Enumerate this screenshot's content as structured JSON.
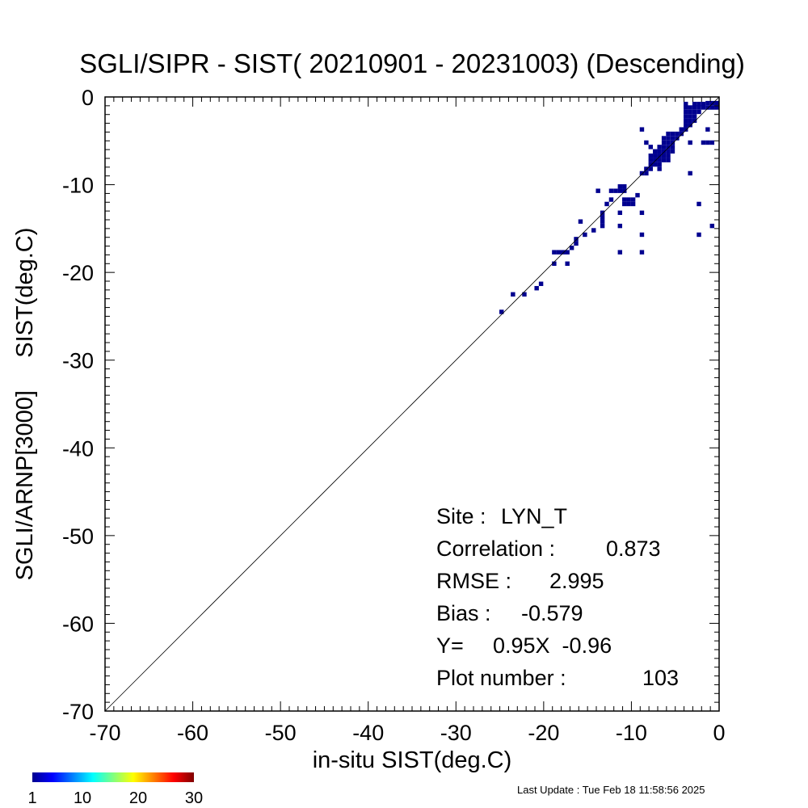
{
  "chart_data": {
    "type": "heatmap",
    "title": "SGLI/SIPR - SIST( 20210901 - 20231003) (Descending)",
    "xlabel": "in-situ SIST(deg.C)",
    "ylabel": "SGLI/ARNP[3000]     SIST(deg.C)",
    "xlim": [
      -70,
      0
    ],
    "ylim": [
      -70,
      0
    ],
    "x_ticks": [
      "-70",
      "-60",
      "-50",
      "-40",
      "-30",
      "-20",
      "-10",
      "0"
    ],
    "y_ticks": [
      "-70",
      "-60",
      "-50",
      "-40",
      "-30",
      "-20",
      "-10",
      "0"
    ],
    "grid": false,
    "one_to_one_line": true,
    "cell_size": 0.5,
    "cell_color": "#00008f",
    "points": [
      [
        -24.8,
        -24.5
      ],
      [
        -23.5,
        -22.5
      ],
      [
        -22.2,
        -22.5
      ],
      [
        -20.8,
        -21.8
      ],
      [
        -20.3,
        -21.3
      ],
      [
        -18.8,
        -19.0
      ],
      [
        -17.3,
        -19.0
      ],
      [
        -18.8,
        -17.7
      ],
      [
        -18.3,
        -17.7
      ],
      [
        -17.8,
        -17.7
      ],
      [
        -17.3,
        -17.7
      ],
      [
        -16.8,
        -17.2
      ],
      [
        -16.3,
        -16.7
      ],
      [
        -16.3,
        -16.2
      ],
      [
        -15.8,
        -14.2
      ],
      [
        -15.3,
        -15.7
      ],
      [
        -14.3,
        -15.2
      ],
      [
        -13.3,
        -14.7
      ],
      [
        -13.3,
        -14.2
      ],
      [
        -13.3,
        -13.7
      ],
      [
        -13.3,
        -13.2
      ],
      [
        -12.8,
        -12.2
      ],
      [
        -13.8,
        -10.7
      ],
      [
        -12.3,
        -11.7
      ],
      [
        -12.3,
        -10.7
      ],
      [
        -11.8,
        -10.7
      ],
      [
        -11.3,
        -10.7
      ],
      [
        -11.3,
        -10.2
      ],
      [
        -10.8,
        -10.2
      ],
      [
        -10.8,
        -10.7
      ],
      [
        -10.8,
        -11.7
      ],
      [
        -10.8,
        -12.2
      ],
      [
        -10.3,
        -12.2
      ],
      [
        -10.3,
        -11.7
      ],
      [
        -9.8,
        -12.2
      ],
      [
        -9.8,
        -11.7
      ],
      [
        -9.3,
        -11.2
      ],
      [
        -11.3,
        -13.2
      ],
      [
        -11.3,
        -14.7
      ],
      [
        -11.3,
        -17.7
      ],
      [
        -8.8,
        -13.2
      ],
      [
        -8.8,
        -15.7
      ],
      [
        -8.8,
        -17.7
      ],
      [
        -8.8,
        -8.7
      ],
      [
        -8.3,
        -8.7
      ],
      [
        -8.3,
        -8.2
      ],
      [
        -7.8,
        -7.7
      ],
      [
        -7.8,
        -7.2
      ],
      [
        -7.3,
        -7.2
      ],
      [
        -7.3,
        -6.7
      ],
      [
        -7.3,
        -6.2
      ],
      [
        -6.8,
        -7.7
      ],
      [
        -6.8,
        -7.2
      ],
      [
        -6.8,
        -6.7
      ],
      [
        -6.8,
        -6.2
      ],
      [
        -6.8,
        -5.7
      ],
      [
        -6.3,
        -7.2
      ],
      [
        -6.3,
        -6.7
      ],
      [
        -6.3,
        -6.2
      ],
      [
        -6.3,
        -5.7
      ],
      [
        -6.3,
        -5.2
      ],
      [
        -6.3,
        -4.7
      ],
      [
        -5.8,
        -6.7
      ],
      [
        -5.8,
        -6.2
      ],
      [
        -5.8,
        -5.7
      ],
      [
        -5.8,
        -5.2
      ],
      [
        -5.8,
        -4.7
      ],
      [
        -5.8,
        -4.2
      ],
      [
        -5.3,
        -6.2
      ],
      [
        -5.3,
        -5.7
      ],
      [
        -5.3,
        -5.2
      ],
      [
        -5.3,
        -4.7
      ],
      [
        -5.3,
        -4.2
      ],
      [
        -4.8,
        -4.7
      ],
      [
        -4.8,
        -4.2
      ],
      [
        -4.3,
        -4.2
      ],
      [
        -8.8,
        -3.7
      ],
      [
        -8.3,
        -5.2
      ],
      [
        -7.8,
        -5.7
      ],
      [
        -7.8,
        -6.7
      ],
      [
        -7.3,
        -7.7
      ],
      [
        -7.8,
        -8.2
      ],
      [
        -6.8,
        -8.2
      ],
      [
        -5.8,
        -7.2
      ],
      [
        -3.8,
        -3.7
      ],
      [
        -3.8,
        -3.2
      ],
      [
        -3.8,
        -2.7
      ],
      [
        -3.8,
        -2.2
      ],
      [
        -3.8,
        -1.7
      ],
      [
        -3.8,
        -1.2
      ],
      [
        -3.3,
        -3.2
      ],
      [
        -3.3,
        -2.7
      ],
      [
        -3.3,
        -2.2
      ],
      [
        -3.3,
        -1.7
      ],
      [
        -3.3,
        -1.2
      ],
      [
        -2.8,
        -2.7
      ],
      [
        -2.8,
        -2.2
      ],
      [
        -2.8,
        -1.7
      ],
      [
        -2.8,
        -1.2
      ],
      [
        -2.3,
        -1.7
      ],
      [
        -2.3,
        -1.2
      ],
      [
        -1.8,
        -1.2
      ],
      [
        -1.3,
        -1.2
      ],
      [
        -0.8,
        -1.2
      ],
      [
        -0.3,
        -1.2
      ],
      [
        -1.3,
        -5.2
      ],
      [
        -0.8,
        -5.2
      ],
      [
        -1.3,
        -3.7
      ],
      [
        -3.3,
        -5.2
      ],
      [
        -3.3,
        -8.7
      ],
      [
        -2.3,
        -12.2
      ],
      [
        -2.3,
        -15.7
      ],
      [
        -0.8,
        -14.7
      ],
      [
        -1.8,
        -5.2
      ],
      [
        -4.3,
        -3.7
      ],
      [
        -2.8,
        -0.8
      ],
      [
        -1.3,
        -0.7
      ],
      [
        -0.8,
        -0.7
      ],
      [
        -0.3,
        -0.7
      ],
      [
        -3.8,
        -0.8
      ],
      [
        -2.3,
        -0.8
      ],
      [
        -1.8,
        -0.8
      ]
    ],
    "colorbar": {
      "range": [
        1,
        30
      ],
      "tick_labels": [
        "1",
        "10",
        "20",
        "30"
      ],
      "colors": [
        "#00008f",
        "#0000ff",
        "#0080ff",
        "#00ffff",
        "#80ff80",
        "#ffff00",
        "#ff8000",
        "#ff0000",
        "#800000"
      ]
    },
    "stats": [
      {
        "label": "Site :",
        "value": "LYN_T"
      },
      {
        "label": "Correlation :",
        "value": "0.873"
      },
      {
        "label": "RMSE :",
        "value": "2.995"
      },
      {
        "label": "Bias :",
        "value": "-0.579"
      },
      {
        "label": "Y=",
        "value": "0.95X  -0.96"
      },
      {
        "label": "Plot number :",
        "value": "103"
      }
    ]
  },
  "footer": {
    "last_update": "Last Update : Tue Feb 18 11:58:56 2025"
  }
}
